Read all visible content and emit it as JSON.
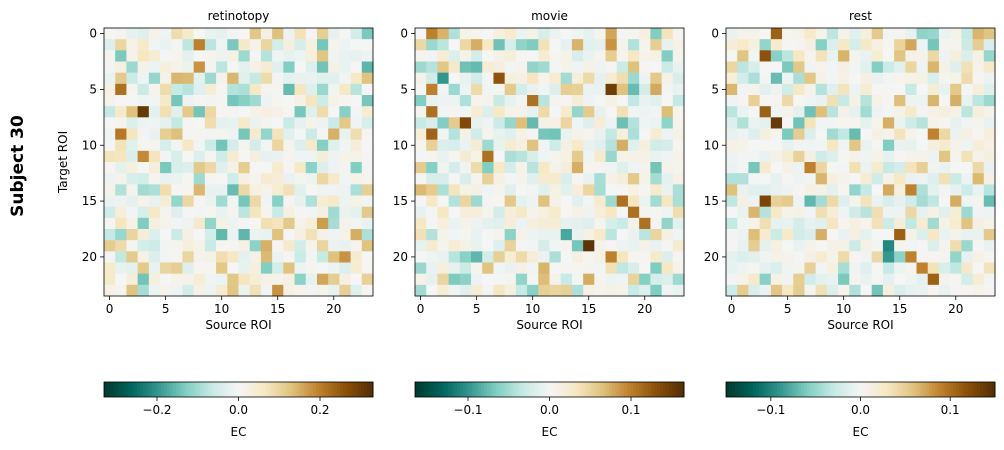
{
  "figure": {
    "row_label": "Subject 30"
  },
  "chart_data": [
    {
      "type": "heatmap",
      "title": "retinotopy",
      "xlabel": "Source ROI",
      "ylabel": "Target ROI",
      "x_ticks": [
        0,
        5,
        10,
        15,
        20
      ],
      "y_ticks": [
        0,
        5,
        10,
        15,
        20
      ],
      "matrix_size": 24,
      "colormap": "BrBG_r",
      "colorbar": {
        "label": "EC",
        "range": [
          -0.33,
          0.33
        ],
        "ticks": [
          -0.2,
          0.0,
          0.2
        ],
        "tick_labels": [
          "−0.2",
          "0.0",
          "0.2"
        ]
      },
      "seed": 30,
      "values": [],
      "highlights": [
        [
          7,
          3,
          0.31
        ],
        [
          5,
          1,
          0.22
        ],
        [
          9,
          1,
          0.21
        ],
        [
          11,
          3,
          0.19
        ],
        [
          3,
          8,
          0.18
        ],
        [
          1,
          8,
          0.2
        ],
        [
          4,
          7,
          0.14
        ],
        [
          20,
          21,
          0.18
        ],
        [
          17,
          19,
          0.17
        ],
        [
          23,
          15,
          0.18
        ],
        [
          22,
          19,
          0.16
        ],
        [
          20,
          14,
          0.14
        ],
        [
          19,
          14,
          0.15
        ],
        [
          21,
          16,
          0.13
        ],
        [
          7,
          2,
          0.13
        ],
        [
          19,
          23,
          0.13
        ],
        [
          3,
          16,
          -0.13
        ],
        [
          18,
          12,
          -0.16
        ],
        [
          6,
          6,
          -0.14
        ],
        [
          6,
          11,
          -0.14
        ],
        [
          21,
          14,
          -0.13
        ],
        [
          19,
          13,
          -0.12
        ],
        [
          14,
          3,
          -0.1
        ]
      ]
    },
    {
      "type": "heatmap",
      "title": "movie",
      "xlabel": "Source ROI",
      "ylabel": "",
      "x_ticks": [
        0,
        5,
        10,
        15,
        20
      ],
      "y_ticks": [
        0,
        5,
        10,
        15,
        20
      ],
      "matrix_size": 24,
      "colormap": "BrBG_r",
      "colorbar": {
        "label": "EC",
        "range": [
          -0.165,
          0.165
        ],
        "ticks": [
          -0.1,
          0.0,
          0.1
        ],
        "tick_labels": [
          "−0.1",
          "0.0",
          "0.1"
        ]
      },
      "seed": 301,
      "values": [],
      "highlights": [
        [
          19,
          15,
          0.16
        ],
        [
          5,
          17,
          0.15
        ],
        [
          8,
          4,
          0.14
        ],
        [
          4,
          7,
          0.13
        ],
        [
          9,
          1,
          0.12
        ],
        [
          7,
          1,
          0.11
        ],
        [
          11,
          6,
          0.11
        ],
        [
          6,
          10,
          0.11
        ],
        [
          15,
          18,
          0.11
        ],
        [
          16,
          19,
          0.11
        ],
        [
          17,
          20,
          0.11
        ],
        [
          5,
          1,
          0.1
        ],
        [
          0,
          1,
          0.1
        ],
        [
          1,
          17,
          0.09
        ],
        [
          20,
          17,
          0.1
        ],
        [
          0,
          17,
          0.08
        ],
        [
          4,
          2,
          -0.1
        ],
        [
          18,
          13,
          -0.09
        ],
        [
          20,
          5,
          -0.08
        ],
        [
          9,
          11,
          -0.07
        ],
        [
          19,
          14,
          -0.07
        ]
      ]
    },
    {
      "type": "heatmap",
      "title": "rest",
      "xlabel": "Source ROI",
      "ylabel": "",
      "x_ticks": [
        0,
        5,
        10,
        15,
        20
      ],
      "y_ticks": [
        0,
        5,
        10,
        15,
        20
      ],
      "matrix_size": 24,
      "colormap": "BrBG_r",
      "colorbar": {
        "label": "EC",
        "range": [
          -0.15,
          0.15
        ],
        "ticks": [
          -0.1,
          0.0,
          0.1
        ],
        "tick_labels": [
          "−0.1",
          "0.0",
          "0.1"
        ]
      },
      "seed": 3030,
      "values": [],
      "highlights": [
        [
          8,
          4,
          0.14
        ],
        [
          15,
          3,
          0.13
        ],
        [
          2,
          3,
          0.12
        ],
        [
          7,
          3,
          0.11
        ],
        [
          0,
          4,
          0.11
        ],
        [
          18,
          15,
          0.11
        ],
        [
          22,
          18,
          0.11
        ],
        [
          21,
          17,
          0.09
        ],
        [
          20,
          16,
          0.09
        ],
        [
          12,
          7,
          0.09
        ],
        [
          9,
          18,
          0.09
        ],
        [
          14,
          16,
          0.09
        ],
        [
          15,
          20,
          0.07
        ],
        [
          19,
          14,
          -0.1
        ],
        [
          20,
          14,
          -0.09
        ],
        [
          9,
          11,
          -0.07
        ],
        [
          10,
          14,
          -0.06
        ]
      ]
    }
  ]
}
